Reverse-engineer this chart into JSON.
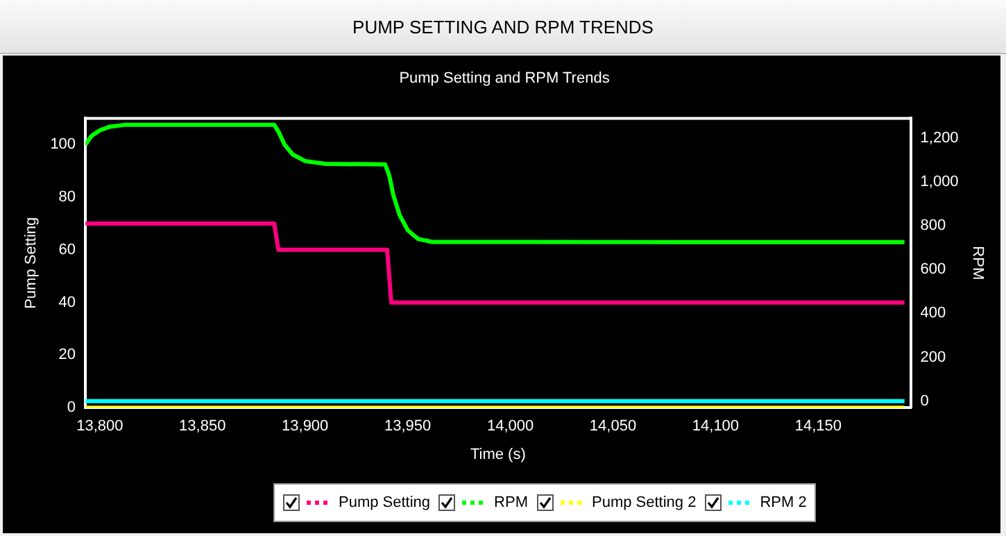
{
  "chart_data": {
    "type": "line",
    "title": "PUMP SETTING AND RPM TRENDS",
    "subtitle": "Pump Setting and RPM Trends",
    "xlabel": "Time (s)",
    "ylabel": "Pump Setting",
    "y2label": "RPM",
    "xlim": [
      13793,
      14195
    ],
    "xticks": [
      {
        "value": 13800,
        "label": "13,800"
      },
      {
        "value": 13850,
        "label": "13,850"
      },
      {
        "value": 13900,
        "label": "13,900"
      },
      {
        "value": 13950,
        "label": "13,950"
      },
      {
        "value": 14000,
        "label": "14,000"
      },
      {
        "value": 14050,
        "label": "14,050"
      },
      {
        "value": 14100,
        "label": "14,100"
      },
      {
        "value": 14150,
        "label": "14,150"
      }
    ],
    "ylim": [
      0,
      110
    ],
    "yticks": [
      0,
      20,
      40,
      60,
      80,
      100
    ],
    "y2lim": [
      -30,
      1290
    ],
    "y2ticks": [
      0,
      200,
      400,
      600,
      800,
      {
        "value": 1000,
        "label": "1,000"
      },
      {
        "value": 1200,
        "label": "1,200"
      }
    ],
    "legend": "bottom",
    "marker": "none",
    "line_style": "solid",
    "series": [
      {
        "name": "Pump Setting",
        "color": "#ff0080",
        "x": [
          13793,
          13885,
          13887,
          13940,
          13942,
          14192
        ],
        "values": [
          70,
          70,
          60,
          60,
          40,
          40
        ]
      },
      {
        "name": "RPM",
        "color": "#00ff00",
        "axis": "y2",
        "x": [
          13793,
          13796,
          13800,
          13805,
          13812,
          13885,
          13887,
          13890,
          13894,
          13900,
          13910,
          13939,
          13941,
          13943,
          13946,
          13950,
          13955,
          13962,
          14192
        ],
        "values": [
          1170,
          1210,
          1235,
          1252,
          1260,
          1260,
          1230,
          1170,
          1125,
          1095,
          1082,
          1080,
          1030,
          940,
          850,
          780,
          740,
          726,
          725
        ]
      },
      {
        "name": "Pump Setting 2",
        "color": "#ffff00",
        "x": [
          13793,
          14192
        ],
        "values": [
          0,
          0
        ]
      },
      {
        "name": "RPM 2",
        "color": "#00ffff",
        "axis": "y2",
        "x": [
          13793,
          14192
        ],
        "values": [
          0,
          0
        ]
      }
    ]
  }
}
